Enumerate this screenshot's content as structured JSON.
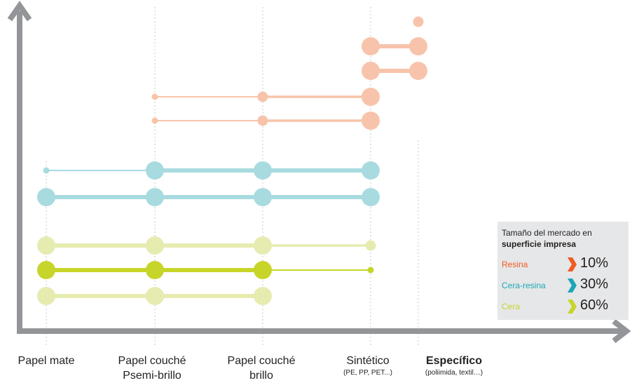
{
  "chart_data": {
    "type": "scatter",
    "categories": [
      {
        "label_lines": [
          "Papel mate"
        ],
        "sub": ""
      },
      {
        "label_lines": [
          "Papel couché",
          "Psemi-brillo"
        ],
        "sub": ""
      },
      {
        "label_lines": [
          "Papel couché",
          "brillo"
        ],
        "sub": ""
      },
      {
        "label_lines": [
          "Sintético"
        ],
        "sub": "(PE, PP, PET...)"
      },
      {
        "label_lines": [
          "Específico"
        ],
        "sub": "(poliimida, textil…)",
        "bold": true
      }
    ],
    "series": [
      {
        "type": "Resina",
        "color": "#f7c4ab",
        "sizes": [
          0,
          0,
          0,
          0,
          2
        ]
      },
      {
        "type": "Resina",
        "color": "#f7c4ab",
        "sizes": [
          0,
          0,
          0,
          3,
          3
        ]
      },
      {
        "type": "Resina",
        "color": "#f7c4ab",
        "sizes": [
          0,
          0,
          0,
          3,
          3
        ]
      },
      {
        "type": "Resina",
        "color": "#f7c4ab",
        "sizes": [
          0,
          1,
          2,
          3,
          0
        ]
      },
      {
        "type": "Resina",
        "color": "#f7c4ab",
        "sizes": [
          0,
          1,
          2,
          3,
          0
        ]
      },
      {
        "type": "Cera-resina",
        "color": "#a8dbe0",
        "sizes": [
          1,
          3,
          3,
          3,
          0
        ]
      },
      {
        "type": "Cera-resina",
        "color": "#a8dbe0",
        "sizes": [
          3,
          3,
          3,
          3,
          0
        ]
      },
      {
        "type": "Cera",
        "color": "#e6ecb0",
        "sizes": [
          3,
          3,
          3,
          2,
          0
        ]
      },
      {
        "type": "Cera",
        "color": "#c7d52a",
        "sizes": [
          3,
          3,
          3,
          1,
          0
        ]
      },
      {
        "type": "Cera",
        "color": "#e6ecb0",
        "sizes": [
          3,
          3,
          3,
          0,
          0
        ]
      }
    ],
    "legend": {
      "title": "Tamaño del mercado en",
      "subtitle": "superficie impresa",
      "position": "bottom-right",
      "items": [
        {
          "name": "Resina",
          "value": "10%",
          "color": "#f15a22"
        },
        {
          "name": "Cera-resina",
          "value": "30%",
          "color": "#1ba7b9"
        },
        {
          "name": "Cera",
          "value": "60%",
          "color": "#c7d52a"
        }
      ]
    },
    "colors": {
      "axis": "#939598",
      "guide": "#d1d3d4"
    }
  }
}
